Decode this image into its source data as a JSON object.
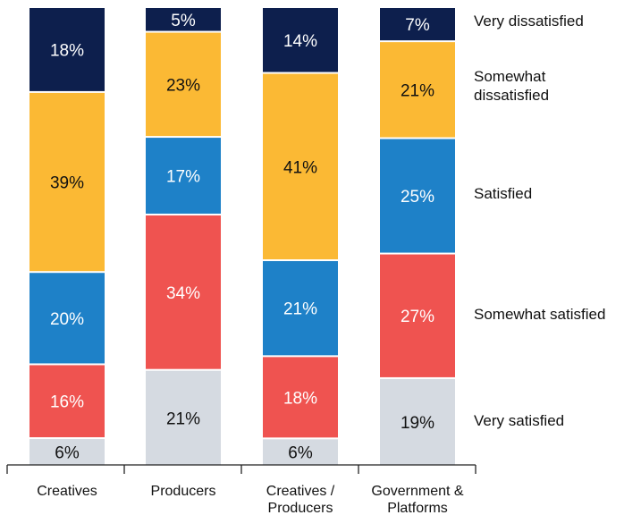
{
  "chart_data": {
    "type": "bar",
    "stacked": true,
    "normalized": true,
    "categories": [
      [
        "Creatives"
      ],
      [
        "Producers"
      ],
      [
        "Creatives /",
        "Producers"
      ],
      [
        "Government &",
        "Platforms"
      ]
    ],
    "series": [
      {
        "name": "Very satisfied",
        "color": "#d5dae1",
        "text_color": "#111111",
        "values": [
          6,
          21,
          6,
          19
        ]
      },
      {
        "name": "Somewhat satisfied",
        "color": "#ef5350",
        "text_color": "#ffffff",
        "values": [
          16,
          34,
          18,
          27
        ]
      },
      {
        "name": "Satisfied",
        "color": "#1e81c8",
        "text_color": "#ffffff",
        "values": [
          20,
          17,
          21,
          25
        ]
      },
      {
        "name": "Somewhat dissatisfied",
        "color": "#fbb934",
        "text_color": "#111111",
        "values": [
          39,
          23,
          41,
          21
        ]
      },
      {
        "name": "Very dissatisfied",
        "color": "#0d1f4d",
        "text_color": "#ffffff",
        "values": [
          18,
          5,
          14,
          7
        ]
      }
    ],
    "legend": [
      {
        "lines": [
          "Very dissatisfied"
        ]
      },
      {
        "lines": [
          "Somewhat",
          "dissatisfied"
        ]
      },
      {
        "lines": [
          "Satisfied"
        ]
      },
      {
        "lines": [
          "Somewhat satisfied"
        ]
      },
      {
        "lines": [
          "Very satisfied"
        ]
      }
    ],
    "value_suffix": "%",
    "legend_placement": "right",
    "ylim": [
      0,
      100
    ],
    "grid": false
  }
}
